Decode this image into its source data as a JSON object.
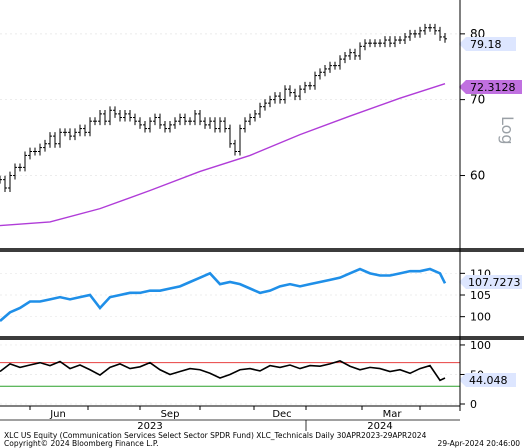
{
  "chart_data": [
    {
      "type": "line",
      "subtype": "ohlc-bars",
      "y_axis_side": "right",
      "ylim": [
        52,
        85
      ],
      "yticks": [
        60,
        70,
        80
      ],
      "ylabel_scale": "Log",
      "current_value_labels": [
        "79.18",
        "72.3128"
      ],
      "series": [
        {
          "role": "price",
          "color": "#000000",
          "x": [
            0,
            5,
            10,
            15,
            20,
            25,
            30,
            35,
            40,
            45,
            50,
            55,
            60,
            65,
            70,
            75,
            80,
            85,
            90,
            95,
            100,
            105,
            110,
            115,
            120,
            125,
            130,
            135,
            140,
            145,
            150,
            155,
            160,
            165,
            170,
            175,
            180,
            185,
            190,
            195,
            200,
            205,
            210,
            215,
            220,
            225,
            230,
            235,
            240,
            245,
            250,
            255,
            260,
            265,
            270,
            275,
            280,
            285,
            290,
            295,
            300,
            305,
            310,
            315,
            320,
            325,
            330,
            335,
            340,
            345,
            350,
            355,
            360,
            365,
            370,
            375,
            380,
            385,
            390,
            395,
            400,
            405,
            410,
            415,
            420,
            425,
            430,
            435,
            440,
            445
          ],
          "values": [
            59.5,
            58.5,
            60,
            61,
            61,
            62.5,
            63,
            63,
            63.5,
            64,
            65,
            64,
            65.5,
            65.5,
            65,
            65.5,
            66,
            65.5,
            67,
            67,
            68,
            67,
            68.5,
            68,
            67.5,
            68,
            67.5,
            67,
            66.5,
            66,
            67,
            67.5,
            66.5,
            66,
            66.5,
            67,
            67.5,
            67,
            67,
            68,
            67,
            66.5,
            67,
            66,
            67,
            66,
            64,
            63,
            66,
            67,
            67.5,
            68,
            69,
            69.5,
            70,
            70.5,
            70,
            71.5,
            71,
            70.5,
            71.5,
            72,
            72,
            73.5,
            74,
            74.5,
            75,
            75,
            76,
            76.5,
            77,
            76.5,
            78,
            78.5,
            78.5,
            78.5,
            78.5,
            79,
            78.5,
            79,
            79,
            79.5,
            80,
            80,
            80.5,
            81,
            81,
            80.5,
            79.5,
            79.2
          ]
        },
        {
          "role": "moving-average",
          "color": "#b03cd8",
          "x": [
            0,
            50,
            100,
            150,
            200,
            250,
            300,
            350,
            400,
            445
          ],
          "values": [
            54.2,
            54.6,
            56.1,
            58.2,
            60.5,
            62.5,
            65.2,
            67.7,
            70.2,
            72.3
          ]
        }
      ]
    },
    {
      "type": "line",
      "y_axis_side": "right",
      "ylim": [
        96,
        114
      ],
      "yticks": [
        100,
        105,
        110
      ],
      "current_value_label": "107.7273",
      "series": [
        {
          "color": "#1f8fe8",
          "x": [
            0,
            10,
            20,
            30,
            40,
            50,
            60,
            70,
            80,
            90,
            100,
            110,
            120,
            130,
            140,
            150,
            160,
            170,
            180,
            190,
            200,
            210,
            220,
            230,
            240,
            250,
            260,
            270,
            280,
            290,
            300,
            310,
            320,
            330,
            340,
            350,
            360,
            370,
            380,
            390,
            400,
            410,
            420,
            430,
            440,
            445
          ],
          "values": [
            99,
            101,
            102,
            103.5,
            103.5,
            104,
            104.5,
            104,
            104.5,
            105,
            102,
            104.5,
            105,
            105.5,
            105.5,
            106,
            106,
            106.5,
            107,
            108,
            109,
            110,
            107.5,
            108,
            107.5,
            106.5,
            105.5,
            106,
            107,
            107.5,
            107,
            107.5,
            108,
            108.5,
            109,
            110,
            111,
            110,
            109.5,
            109.5,
            110,
            110.5,
            110.5,
            111,
            110,
            107.7
          ]
        }
      ]
    },
    {
      "type": "line",
      "y_axis_side": "right",
      "ylim": [
        0,
        105
      ],
      "yticks": [
        0,
        50,
        100
      ],
      "reference_lines": [
        {
          "value": 70,
          "color": "#e84040"
        },
        {
          "value": 30,
          "color": "#2aa02a"
        }
      ],
      "current_value_label": "44.048",
      "series": [
        {
          "color": "#000000",
          "x": [
            0,
            10,
            20,
            30,
            40,
            50,
            60,
            70,
            80,
            90,
            100,
            110,
            120,
            130,
            140,
            150,
            160,
            170,
            180,
            190,
            200,
            210,
            220,
            230,
            240,
            250,
            260,
            270,
            280,
            290,
            300,
            310,
            320,
            330,
            340,
            350,
            360,
            370,
            380,
            390,
            400,
            410,
            420,
            430,
            440,
            445
          ],
          "values": [
            55,
            68,
            62,
            66,
            70,
            65,
            72,
            60,
            66,
            58,
            49,
            62,
            68,
            60,
            63,
            70,
            58,
            50,
            55,
            60,
            58,
            52,
            44,
            50,
            58,
            60,
            56,
            65,
            62,
            66,
            60,
            65,
            64,
            68,
            73,
            64,
            58,
            62,
            60,
            55,
            58,
            52,
            60,
            65,
            40,
            44
          ]
        }
      ]
    }
  ],
  "x_axis": {
    "months": [
      "Jun",
      "Sep",
      "Dec",
      "Mar"
    ],
    "years": [
      "2023",
      "2024"
    ]
  },
  "footer": {
    "left": "XLC US Equity (Communication Services Select Sector SPDR Fund) XLC_Technicals  Daily 30APR2023-29APR2024",
    "copyright": "Copyright© 2024 Bloomberg Finance L.P.",
    "timestamp": "29-Apr-2024 20:46:00"
  },
  "colors": {
    "price": "#000000",
    "moving_average": "#b03cd8",
    "relative_strength": "#1f8fe8",
    "overbought": "#e84040",
    "oversold": "#2aa02a",
    "label_bg": "#dde6ff",
    "label_ma": "#c070e0"
  }
}
